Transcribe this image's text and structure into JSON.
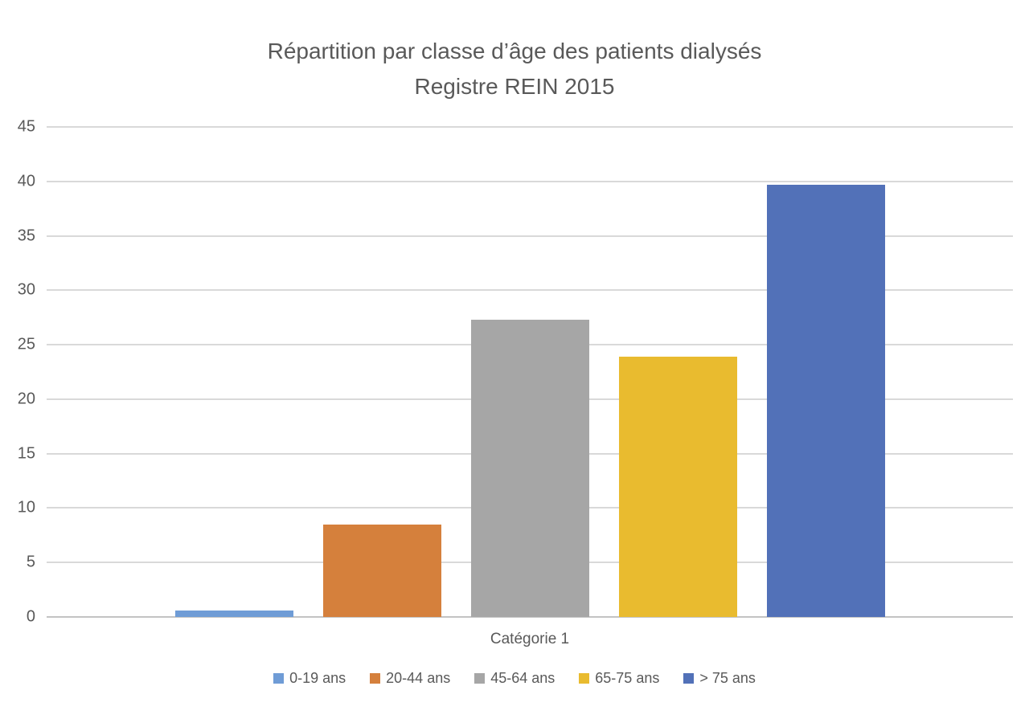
{
  "title": {
    "line1": "Répartition par classe d’âge des patients dialysés",
    "line2": "Registre REIN 2015"
  },
  "chart_data": {
    "type": "bar",
    "title": "Répartition par classe d’âge des patients dialysés",
    "subtitle": "Registre REIN 2015",
    "categories": [
      "Catégorie 1"
    ],
    "series": [
      {
        "name": "0-19 ans",
        "values": [
          0.6
        ],
        "color": "#6f9cd6"
      },
      {
        "name": "20-44 ans",
        "values": [
          8.5
        ],
        "color": "#d5803c"
      },
      {
        "name": "45-64 ans",
        "values": [
          27.3
        ],
        "color": "#a6a6a6"
      },
      {
        "name": "65-75 ans",
        "values": [
          23.9
        ],
        "color": "#e9bb2f"
      },
      {
        "name": "> 75 ans",
        "values": [
          39.7
        ],
        "color": "#5271b8"
      }
    ],
    "xlabel": "Catégorie 1",
    "ylabel": "",
    "ylim": [
      0,
      45
    ],
    "yticks": [
      0,
      5,
      10,
      15,
      20,
      25,
      30,
      35,
      40,
      45
    ],
    "grid": true,
    "legend_position": "bottom",
    "colors": {
      "text": "#595959",
      "gridline": "#d9d9d9",
      "axis_line": "#c3c3c3",
      "background": "#ffffff"
    }
  }
}
